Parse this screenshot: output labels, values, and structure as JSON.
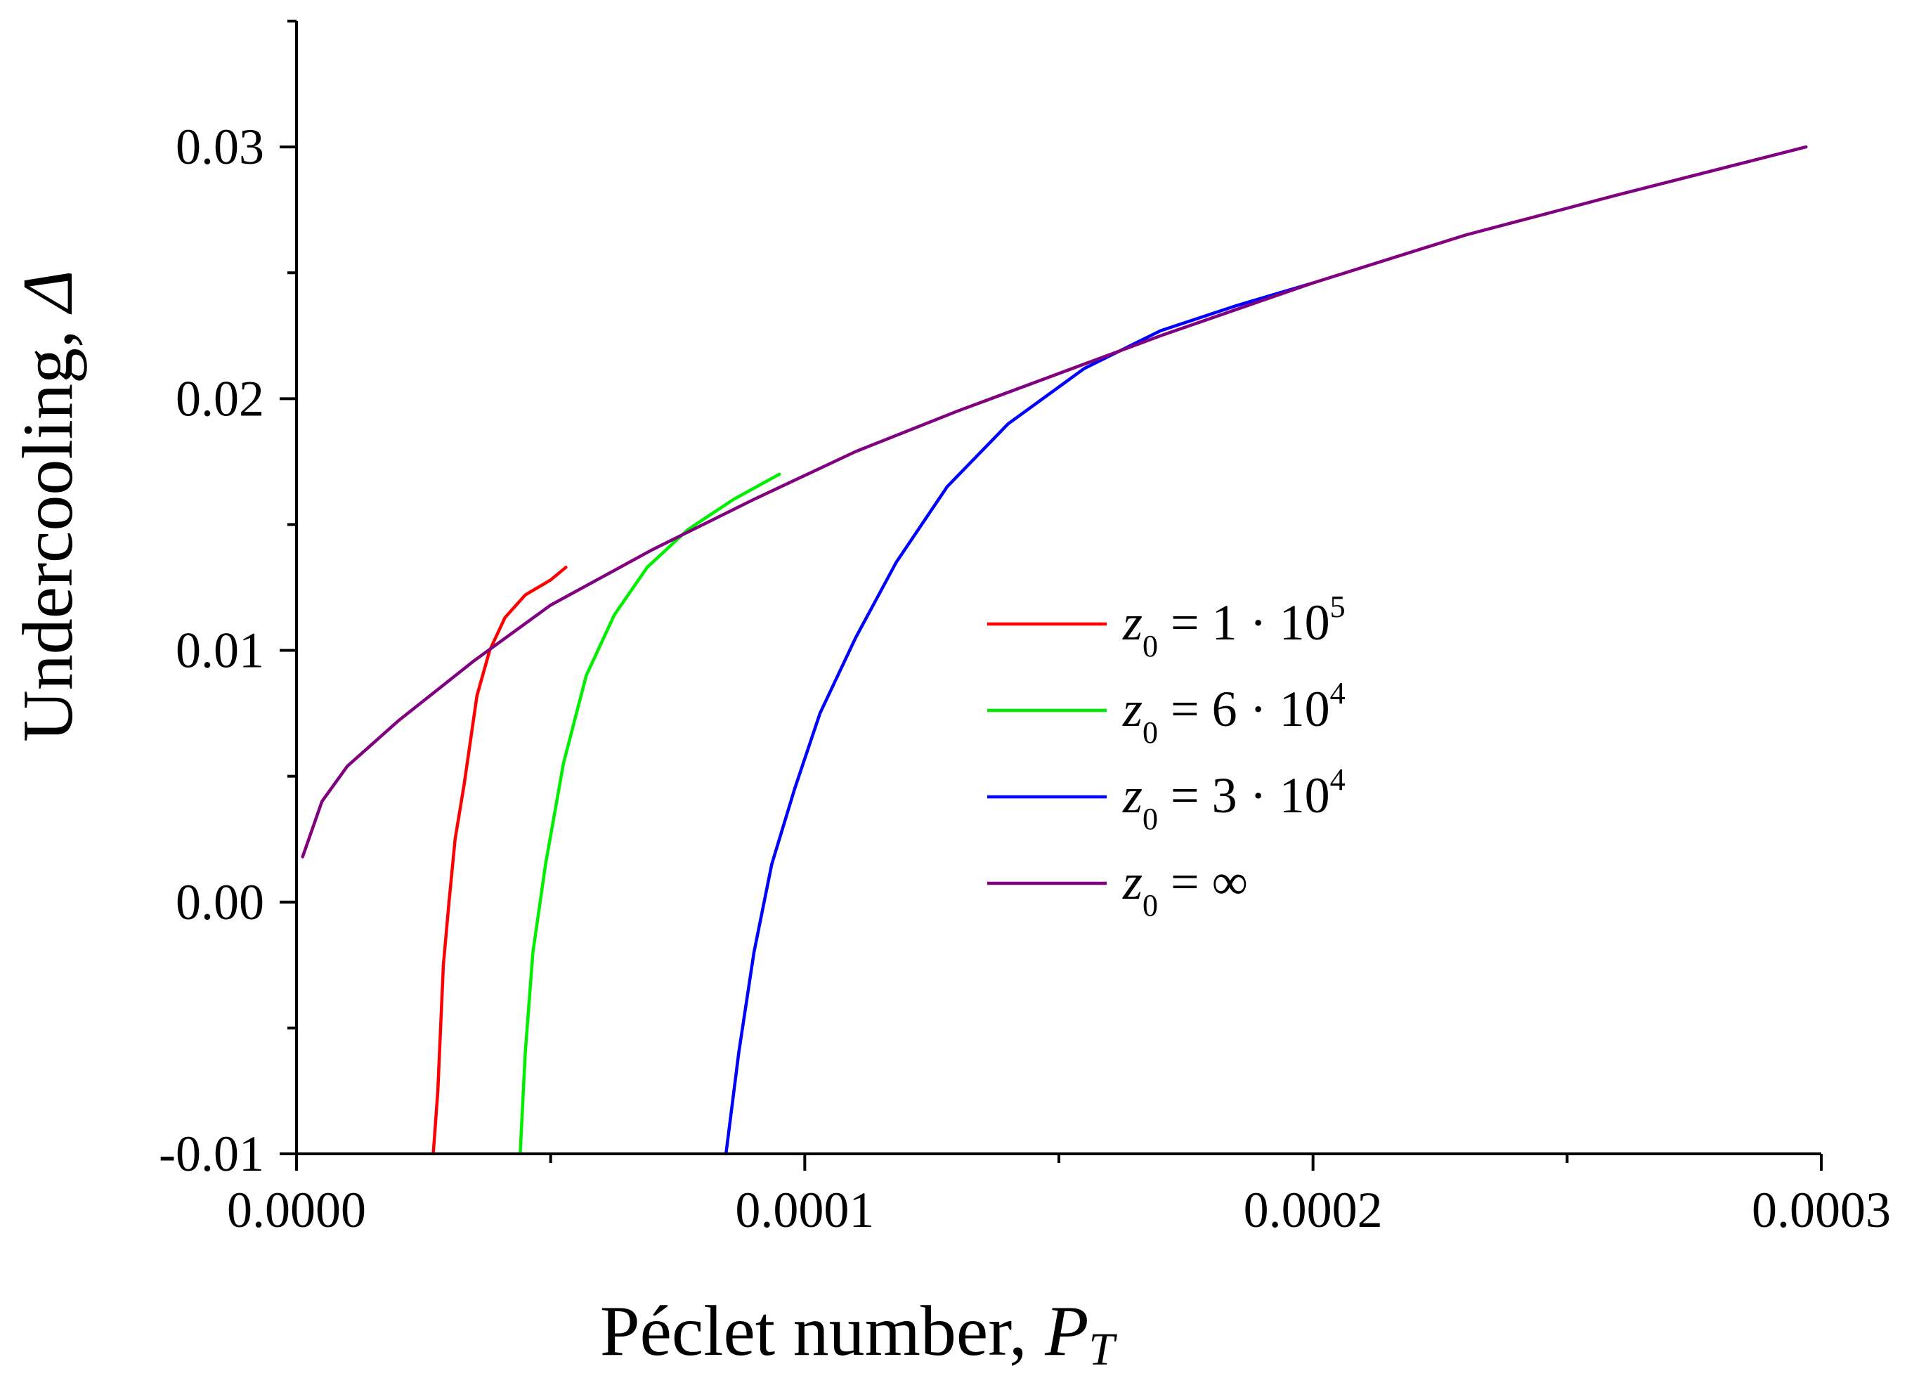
{
  "chart_data": {
    "type": "line",
    "xlabel": "Péclet number, ",
    "xlabel_var": "P",
    "xlabel_sub": "T",
    "ylabel": "Undercooling, ",
    "ylabel_var": "Δ",
    "xlim": [
      0,
      0.0003
    ],
    "ylim": [
      -0.01,
      0.035
    ],
    "x_ticks": [
      0,
      0.0001,
      0.0002,
      0.0003
    ],
    "x_tick_labels": [
      "0.0000",
      "0.0001",
      "0.0002",
      "0.0003"
    ],
    "y_ticks": [
      -0.01,
      0.0,
      0.01,
      0.02,
      0.03
    ],
    "y_tick_labels": [
      "-0.01",
      "0.00",
      "0.01",
      "0.02",
      "0.03"
    ],
    "grid": false,
    "legend_position": "center-right",
    "series": [
      {
        "name": "1 · 10",
        "legend": {
          "var": "z",
          "sub": "0",
          "text": " = 1 · 10",
          "sup": "5"
        },
        "color": "#ff0000",
        "x": [
          2.69e-05,
          2.78e-05,
          2.89e-05,
          3e-05,
          3.12e-05,
          3.3e-05,
          3.55e-05,
          3.8e-05,
          4.1e-05,
          4.5e-05,
          5e-05,
          5.3e-05
        ],
        "y": [
          -0.01,
          -0.0075,
          -0.0025,
          0.0,
          0.0025,
          0.0047,
          0.0082,
          0.01,
          0.0113,
          0.0122,
          0.0128,
          0.0133
        ]
      },
      {
        "name": "6 · 10",
        "legend": {
          "var": "z",
          "sub": "0",
          "text": " = 6 · 10",
          "sup": "4"
        },
        "color": "#00ee00",
        "x": [
          4.4e-05,
          4.5e-05,
          4.65e-05,
          4.9e-05,
          5.25e-05,
          5.7e-05,
          6.25e-05,
          6.9e-05,
          7.7e-05,
          8.6e-05,
          9.5e-05
        ],
        "y": [
          -0.01,
          -0.006,
          -0.002,
          0.0015,
          0.0055,
          0.009,
          0.0114,
          0.0133,
          0.0148,
          0.016,
          0.017
        ]
      },
      {
        "name": "3 · 10",
        "legend": {
          "var": "z",
          "sub": "0",
          "text": " = 3 · 10",
          "sup": "4"
        },
        "color": "#0000ff",
        "x": [
          8.45e-05,
          8.7e-05,
          9e-05,
          9.35e-05,
          9.8e-05,
          0.000103,
          0.00011,
          0.000118,
          0.000128,
          0.00014,
          0.000155,
          0.00017,
          0.000185,
          0.0002
        ],
        "y": [
          -0.01,
          -0.006,
          -0.002,
          0.0015,
          0.0045,
          0.0075,
          0.0105,
          0.0135,
          0.0165,
          0.019,
          0.0212,
          0.0227,
          0.0237,
          0.0246
        ]
      },
      {
        "name": "∞",
        "legend": {
          "var": "z",
          "sub": "0",
          "text": " = ∞",
          "sup": ""
        },
        "color": "#800080",
        "x": [
          1.2e-06,
          5e-06,
          1e-05,
          2e-05,
          3.5e-05,
          5e-05,
          7e-05,
          9e-05,
          0.00011,
          0.00013,
          0.00015,
          0.00017,
          0.0002,
          0.00023,
          0.00026,
          0.000297
        ],
        "y": [
          0.0018,
          0.004,
          0.0054,
          0.0072,
          0.0096,
          0.0118,
          0.014,
          0.016,
          0.0179,
          0.0195,
          0.021,
          0.0225,
          0.0246,
          0.0265,
          0.0281,
          0.03
        ]
      }
    ]
  }
}
